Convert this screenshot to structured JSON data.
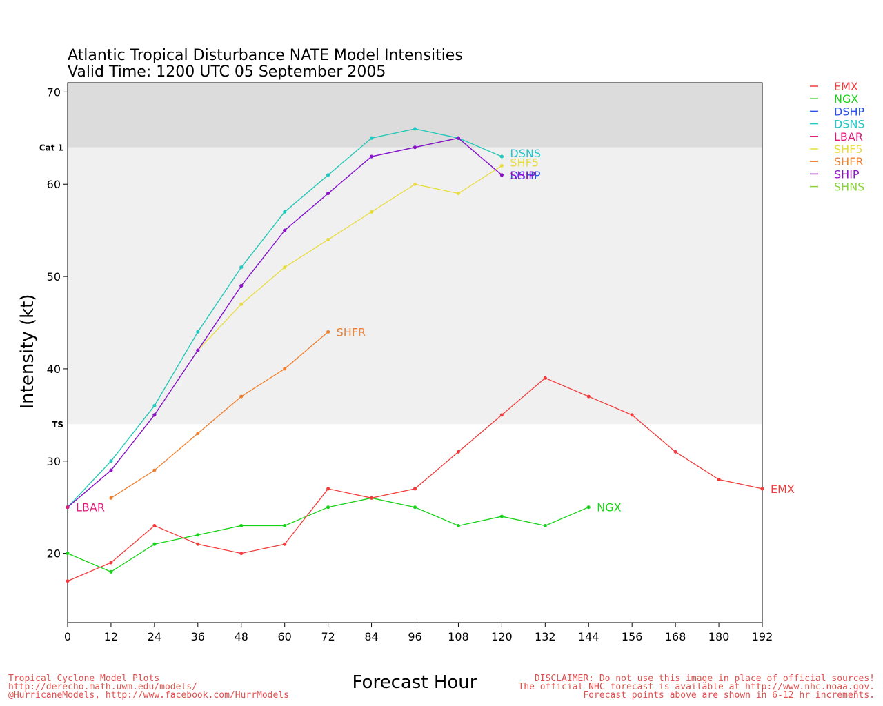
{
  "chart_data": {
    "type": "line",
    "title": "Atlantic Tropical Disturbance NATE Model Intensities",
    "subtitle": "Valid Time: 1200 UTC 05 September 2005",
    "xlabel": "Forecast Hour",
    "ylabel": "Intensity (kt)",
    "xlim": [
      0,
      192
    ],
    "ylim": [
      12.5,
      71
    ],
    "xticks": [
      0,
      12,
      24,
      36,
      48,
      60,
      72,
      84,
      96,
      108,
      120,
      132,
      144,
      156,
      168,
      180,
      192
    ],
    "yticks": [
      20,
      30,
      40,
      50,
      60,
      70
    ],
    "bands": [
      {
        "label": "TS",
        "from": 34,
        "to": 64,
        "color": "#f0f0f0"
      },
      {
        "label": "Cat 1",
        "from": 64,
        "to": 71,
        "color": "#dcdcdc"
      }
    ],
    "legend_position": "right",
    "series": [
      {
        "name": "EMX",
        "color": "#f03c3c",
        "end_label": "EMX",
        "x": [
          0,
          12,
          24,
          36,
          48,
          60,
          72,
          84,
          96,
          108,
          120,
          132,
          144,
          156,
          168,
          180,
          192
        ],
        "values": [
          17,
          19,
          23,
          21,
          20,
          21,
          27,
          26,
          27,
          31,
          35,
          39,
          37,
          35,
          31,
          28,
          27
        ]
      },
      {
        "name": "NGX",
        "color": "#16d216",
        "end_label": "NGX",
        "x": [
          0,
          12,
          24,
          36,
          48,
          60,
          72,
          84,
          96,
          108,
          120,
          132,
          144
        ],
        "values": [
          20,
          18,
          21,
          22,
          23,
          23,
          25,
          26,
          25,
          23,
          24,
          23,
          25
        ]
      },
      {
        "name": "DSHP",
        "color": "#2a50e8",
        "end_label": "DSHP",
        "x": [
          0,
          12,
          24,
          36,
          48,
          60,
          72,
          84,
          96,
          108,
          120
        ],
        "values": [
          25,
          29,
          35,
          42,
          49,
          55,
          59,
          63,
          64,
          65,
          61
        ]
      },
      {
        "name": "DSNS",
        "color": "#22c8c8",
        "end_label": "DSNS",
        "x": [
          0,
          12,
          24,
          36,
          48,
          60,
          72,
          84,
          96,
          108,
          120
        ],
        "values": [
          25,
          30,
          36,
          44,
          51,
          57,
          61,
          65,
          66,
          65,
          63
        ]
      },
      {
        "name": "LBAR",
        "color": "#e0187a",
        "end_label": "LBAR",
        "x": [
          0
        ],
        "values": [
          25
        ]
      },
      {
        "name": "SHF5",
        "color": "#e8dc3c",
        "end_label": "SHF5",
        "x": [
          0,
          12,
          24,
          36,
          48,
          60,
          72,
          84,
          96,
          108,
          120
        ],
        "values": [
          25,
          29,
          35,
          42,
          47,
          51,
          54,
          57,
          60,
          59,
          62
        ]
      },
      {
        "name": "SHFR",
        "color": "#ee8030",
        "end_label": "SHFR",
        "x": [
          12,
          24,
          36,
          48,
          60,
          72
        ],
        "values": [
          26,
          29,
          33,
          37,
          40,
          44
        ]
      },
      {
        "name": "SHIP",
        "color": "#9010c8",
        "end_label": "SHIP",
        "x": [
          0,
          12,
          24,
          36,
          48,
          60,
          72,
          84,
          96,
          108,
          120
        ],
        "values": [
          25,
          29,
          35,
          42,
          49,
          55,
          59,
          63,
          64,
          65,
          61
        ]
      },
      {
        "name": "SHNS",
        "color": "#8ad23c",
        "end_label": "",
        "x": [
          0,
          12,
          24,
          36,
          48,
          60,
          72,
          84,
          96,
          108,
          120
        ],
        "values": [
          25,
          30,
          36,
          44,
          51,
          57,
          61,
          65,
          66,
          65,
          63
        ]
      }
    ]
  },
  "footer": {
    "left": [
      "Tropical Cyclone Model Plots",
      "http://derecho.math.uwm.edu/models/",
      "@HurricaneModels, http://www.facebook.com/HurrModels"
    ],
    "right": [
      "DISCLAIMER: Do not use this image in place of official sources!",
      "The official NHC forecast is available at http://www.nhc.noaa.gov.",
      "Forecast points above are shown in 6-12 hr increments."
    ]
  }
}
